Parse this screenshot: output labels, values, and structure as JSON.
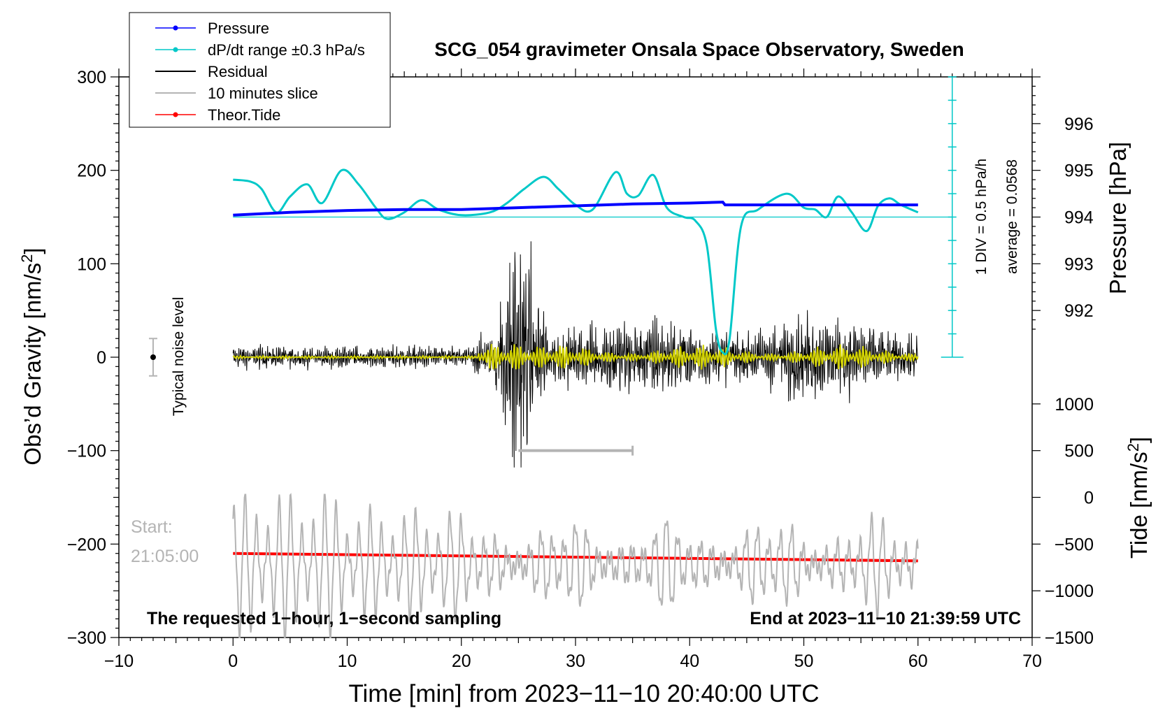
{
  "chart_data": {
    "type": "line",
    "title": "SCG_054 gravimeter Onsala Space Observatory, Sweden",
    "xlabel": "Time [min] from 2023−11−10 20:40:00 UTC",
    "ylabel_left": "Obs’d Gravity [nm/s",
    "ylabel_left_sup": "2",
    "ylabel_left_close": "]",
    "ylabel_right_pressure": "Pressure [hPa]",
    "ylabel_right_tide": "Tide [nm/s",
    "ylabel_right_tide_sup": "2",
    "ylabel_right_tide_close": "]",
    "xlim": [
      -10,
      70
    ],
    "ylim_gravity": [
      -300,
      300
    ],
    "x_ticks": [
      -10,
      0,
      10,
      20,
      30,
      40,
      50,
      60,
      70
    ],
    "x_tick_labels": [
      "−10",
      "0",
      "10",
      "20",
      "30",
      "40",
      "50",
      "60",
      "70"
    ],
    "y_ticks_gravity": [
      300,
      200,
      100,
      0,
      -100,
      -200,
      -300
    ],
    "y_tick_labels_gravity": [
      "300",
      "200",
      "100",
      "0",
      "−100",
      "−200",
      "−300"
    ],
    "pressure_axis": {
      "ticks": [
        996,
        995,
        994,
        993,
        992
      ],
      "tick_labels": [
        "996",
        "995",
        "994",
        "993",
        "992"
      ],
      "gravity_at_994": 150,
      "gravity_per_hpa": 50
    },
    "tide_axis": {
      "ticks": [
        1000,
        500,
        0,
        -500,
        -1000,
        -1500
      ],
      "tick_labels": [
        "1000",
        "500",
        "0",
        "−500",
        "−1000",
        "−1500"
      ],
      "gravity_at_0": -150,
      "gravity_per_500": 50
    },
    "legend": {
      "position": "top-left",
      "entries": [
        {
          "label": "Pressure",
          "color": "#0000ff",
          "marker": true
        },
        {
          "label": "dP/dt range ±0.3 hPa/s",
          "color": "#00c8c8",
          "marker": true
        },
        {
          "label": "Residual",
          "color": "#000000",
          "marker": false
        },
        {
          "label": "10 minutes slice",
          "color": "#b4b4b4",
          "marker": false
        },
        {
          "label": "Theor.Tide",
          "color": "#ff0000",
          "marker": true
        }
      ]
    },
    "annotations": {
      "bottom_left": "The requested 1−hour, 1−second sampling",
      "bottom_right": "End at 2023−11−10 21:39:59 UTC",
      "start_label": "Start:",
      "start_time": "21:05:00",
      "noise_label": "Typical noise level",
      "noise_bar": {
        "x": -7,
        "center": 0,
        "half_range": 20
      },
      "slice_range": {
        "from": 25,
        "to": 35,
        "y": -100
      },
      "dpdt_scale_label": "1 DIV = 0.5 hPa/h",
      "dpdt_average_label": "average = 0.0568",
      "dpdt_scale_axis": {
        "x": 63,
        "y_from": 0,
        "y_to": 300,
        "div": 25
      }
    },
    "colors": {
      "pressure": "#0000ff",
      "dpdt": "#00c8c8",
      "residual": "#000000",
      "residual_filtered": "#d2d200",
      "slice": "#b4b4b4",
      "tide": "#ff0000"
    },
    "series": [
      {
        "name": "Pressure",
        "x": [
          0,
          5,
          10,
          15,
          20,
          25,
          30,
          35,
          40,
          42.9,
          43.1,
          45,
          50,
          55,
          60
        ],
        "values": [
          152,
          155,
          157,
          158,
          158,
          160,
          162,
          164,
          165,
          166,
          163,
          163,
          163,
          163,
          163
        ]
      },
      {
        "name": "dP/dt",
        "x": [
          0,
          1.5,
          2.5,
          3.8,
          5,
          6.5,
          7.8,
          9.5,
          11,
          12.5,
          13.5,
          15,
          16.5,
          18,
          20,
          22.5,
          24,
          25.5,
          27.2,
          28.5,
          30,
          31.5,
          33.5,
          34.5,
          35.5,
          36.8,
          38,
          39.5,
          40.5,
          41.5,
          42.3,
          42.9,
          43.5,
          44.5,
          46,
          48.5,
          50,
          51,
          52,
          53,
          54.2,
          55.5,
          56.5,
          57.5,
          58.5,
          60
        ],
        "values": [
          190,
          188,
          180,
          155,
          172,
          185,
          165,
          200,
          185,
          160,
          148,
          155,
          168,
          158,
          152,
          155,
          165,
          180,
          193,
          180,
          163,
          158,
          198,
          175,
          173,
          195,
          160,
          150,
          146,
          120,
          30,
          5,
          20,
          140,
          158,
          175,
          160,
          158,
          150,
          172,
          155,
          135,
          162,
          170,
          163,
          155
        ]
      },
      {
        "name": "Residual",
        "x_range": [
          0,
          60
        ],
        "envelope_peak": 120
      },
      {
        "name": "10 minutes slice",
        "x_range": [
          0,
          60
        ],
        "y_range": [
          -300,
          -145
        ]
      },
      {
        "name": "Theor.Tide",
        "x": [
          0,
          60
        ],
        "values": [
          -210,
          -218
        ]
      }
    ]
  }
}
